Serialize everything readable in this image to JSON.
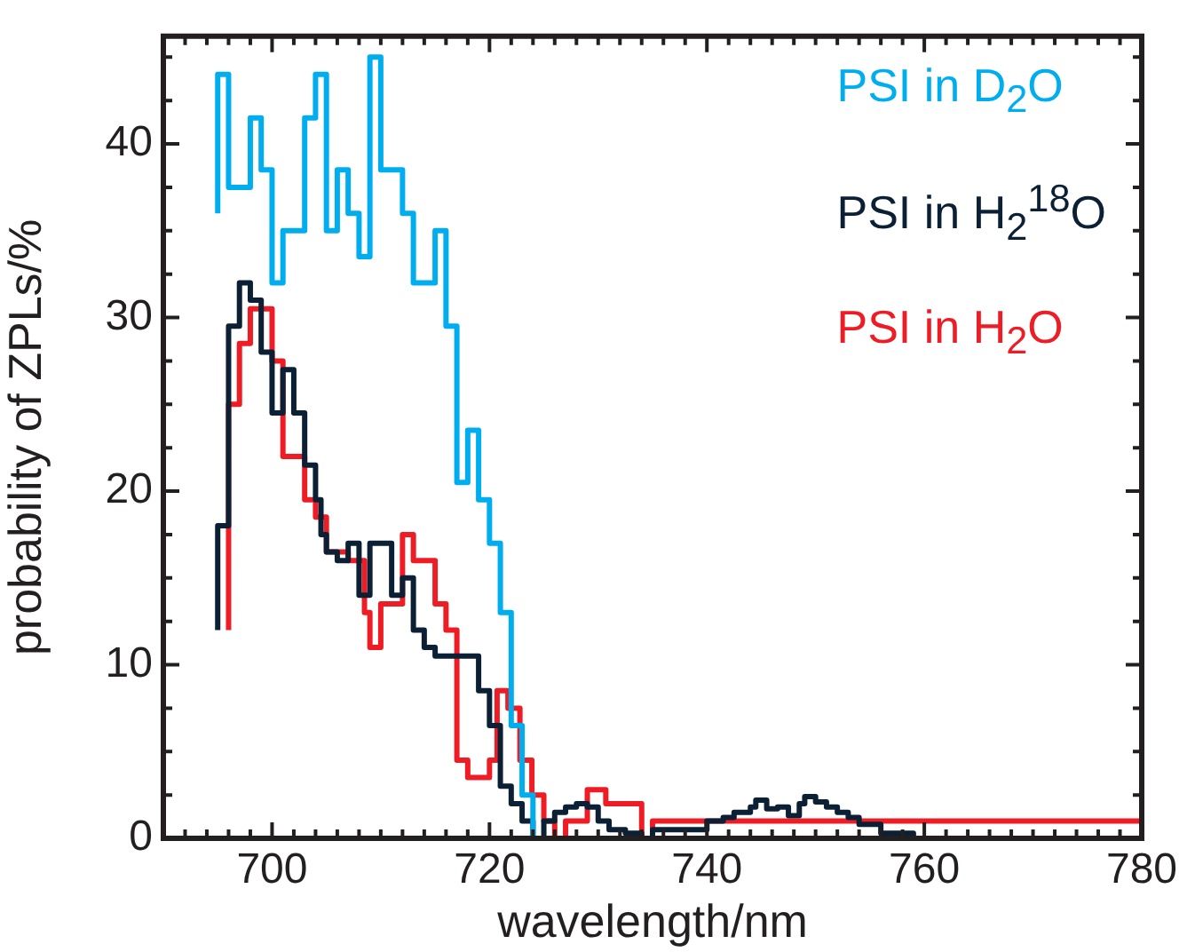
{
  "chart_data": {
    "type": "step",
    "xlabel": "wavelength/nm",
    "ylabel": "probability of ZPLs/%",
    "xlim": [
      690,
      780
    ],
    "xticks": [
      {
        "value": 690,
        "label": null
      },
      {
        "value": 692,
        "label": null
      },
      {
        "value": 694,
        "label": null
      },
      {
        "value": 696,
        "label": null
      },
      {
        "value": 698,
        "label": null
      },
      700,
      {
        "value": 702,
        "label": null
      },
      {
        "value": 704,
        "label": null
      },
      {
        "value": 706,
        "label": null
      },
      {
        "value": 708,
        "label": null
      },
      {
        "value": 710,
        "label": null
      },
      {
        "value": 712,
        "label": null
      },
      {
        "value": 714,
        "label": null
      },
      {
        "value": 716,
        "label": null
      },
      {
        "value": 718,
        "label": null
      },
      720,
      {
        "value": 722,
        "label": null
      },
      {
        "value": 724,
        "label": null
      },
      {
        "value": 726,
        "label": null
      },
      {
        "value": 728,
        "label": null
      },
      {
        "value": 730,
        "label": null
      },
      {
        "value": 732,
        "label": null
      },
      {
        "value": 734,
        "label": null
      },
      {
        "value": 736,
        "label": null
      },
      {
        "value": 738,
        "label": null
      },
      740,
      {
        "value": 742,
        "label": null
      },
      {
        "value": 744,
        "label": null
      },
      {
        "value": 746,
        "label": null
      },
      {
        "value": 748,
        "label": null
      },
      {
        "value": 750,
        "label": null
      },
      {
        "value": 752,
        "label": null
      },
      {
        "value": 754,
        "label": null
      },
      {
        "value": 756,
        "label": null
      },
      {
        "value": 758,
        "label": null
      },
      760,
      {
        "value": 762,
        "label": null
      },
      {
        "value": 764,
        "label": null
      },
      {
        "value": 766,
        "label": null
      },
      {
        "value": 768,
        "label": null
      },
      {
        "value": 770,
        "label": null
      },
      {
        "value": 772,
        "label": null
      },
      {
        "value": 774,
        "label": null
      },
      {
        "value": 776,
        "label": null
      },
      {
        "value": 778,
        "label": null
      },
      780
    ],
    "ylim": [
      0,
      46.2
    ],
    "yticks": [
      0,
      {
        "value": 2.5,
        "label": null
      },
      {
        "value": 5,
        "label": null
      },
      {
        "value": 7.5,
        "label": null
      },
      10,
      {
        "value": 12.5,
        "label": null
      },
      {
        "value": 15,
        "label": null
      },
      {
        "value": 17.5,
        "label": null
      },
      20,
      {
        "value": 22.5,
        "label": null
      },
      {
        "value": 25,
        "label": null
      },
      {
        "value": 27.5,
        "label": null
      },
      30,
      {
        "value": 32.5,
        "label": null
      },
      {
        "value": 35,
        "label": null
      },
      {
        "value": 37.5,
        "label": null
      },
      40,
      {
        "value": 42.5,
        "label": null
      },
      {
        "value": 45,
        "label": null
      }
    ],
    "grid": false,
    "legend": "top right",
    "marker": "none",
    "line_style": "solid",
    "series": [
      {
        "name": "PSI in D$_{2}$O",
        "color": "#00aeef",
        "x": [
          695,
          696,
          698,
          699,
          700,
          701,
          703,
          704,
          705,
          706,
          707,
          708,
          709,
          710,
          712,
          713,
          715,
          716,
          717,
          718,
          719,
          720,
          721,
          722,
          723,
          724,
          725
        ],
        "values": [
          36,
          44,
          37.5,
          41.5,
          38.5,
          32,
          35,
          41.5,
          44,
          35,
          38.5,
          36,
          33.5,
          45,
          38.5,
          36,
          32,
          35,
          29.5,
          20.5,
          23.5,
          19.5,
          17,
          13,
          6.5,
          2.5,
          0
        ]
      },
      {
        "name": "PSI in H$_{2}$$^{18}$O",
        "color": "#0b2035",
        "x": [
          695,
          696,
          697,
          698,
          699,
          700,
          701,
          702,
          703,
          704,
          704.5,
          705,
          706,
          707,
          708,
          709,
          711,
          712,
          713,
          714,
          715,
          717,
          718,
          719,
          720,
          721,
          722,
          723,
          724,
          725,
          726,
          727,
          728,
          729,
          730,
          731,
          732.5,
          734,
          735,
          740,
          741.5,
          742.5,
          744,
          744.5,
          745.5,
          746.5,
          747.5,
          748.5,
          749,
          750,
          751,
          752,
          753,
          754,
          756,
          759,
          760,
          780
        ],
        "values": [
          12,
          18,
          29.5,
          32,
          31,
          28,
          24.5,
          27,
          24.5,
          21.5,
          19.5,
          17.5,
          16.5,
          16,
          17,
          14,
          17,
          14,
          15,
          12,
          11,
          10.5,
          10.5,
          10.5,
          8.5,
          6.5,
          3,
          2,
          1,
          0,
          1,
          1.5,
          1.8,
          2,
          1.8,
          1,
          0.5,
          0.3,
          0,
          0.5,
          1,
          1.2,
          1.5,
          1.8,
          2.2,
          1.7,
          1.8,
          1.3,
          2,
          2.4,
          2.1,
          1.8,
          1.5,
          1.2,
          0.8,
          0.3,
          0,
          0
        ]
      },
      {
        "name": "PSI in H$_{2}$O",
        "color": "#ee1c25",
        "x": [
          696,
          697,
          698,
          700,
          701,
          703,
          704,
          705,
          707,
          708.5,
          709,
          710,
          712,
          713,
          715,
          716,
          717,
          718,
          720,
          720.7,
          721.7,
          722.8,
          723.9,
          725,
          726,
          727,
          729,
          730.7,
          734,
          735,
          768,
          780
        ],
        "values": [
          12,
          25,
          28.5,
          30.5,
          27.5,
          22,
          19.5,
          18.5,
          16.5,
          16,
          13,
          11,
          13.5,
          17.5,
          16,
          13.5,
          12,
          4.5,
          3.5,
          4.5,
          8.5,
          7.5,
          4.5,
          2.5,
          1,
          0,
          1,
          2.8,
          2,
          0,
          1,
          1
        ]
      }
    ]
  }
}
